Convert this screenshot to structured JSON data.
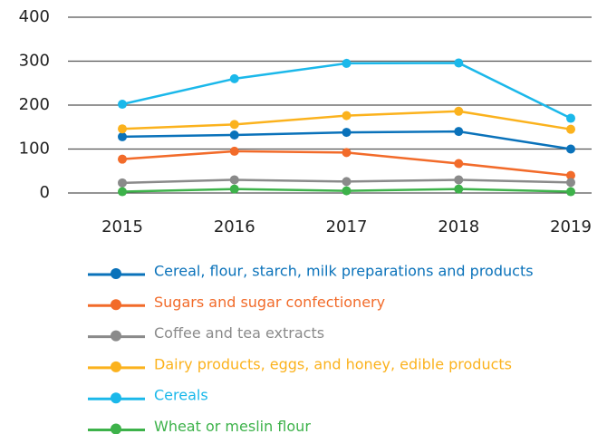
{
  "chart_data": {
    "type": "line",
    "x": [
      "2015",
      "2016",
      "2017",
      "2018",
      "2019"
    ],
    "ylim": [
      0,
      400
    ],
    "yticks": [
      0,
      100,
      200,
      300,
      400
    ],
    "grid": true,
    "series": [
      {
        "name": "Cereal, flour, starch, milk preparations and products",
        "color": "#0a72ba",
        "values": [
          128,
          132,
          138,
          140,
          100
        ]
      },
      {
        "name": "Sugars and sugar confectionery",
        "color": "#f26b2a",
        "values": [
          77,
          95,
          92,
          67,
          40
        ]
      },
      {
        "name": "Coffee and tea extracts",
        "color": "#8a8a8a",
        "values": [
          23,
          30,
          26,
          30,
          24
        ]
      },
      {
        "name": "Dairy products, eggs, and honey, edible products",
        "color": "#fbb21d",
        "values": [
          146,
          156,
          176,
          186,
          145
        ]
      },
      {
        "name": "Cereals",
        "color": "#1bb8ea",
        "values": [
          202,
          260,
          295,
          296,
          170
        ]
      },
      {
        "name": "Wheat or meslin flour",
        "color": "#3db24a",
        "values": [
          3,
          9,
          5,
          9,
          3
        ]
      }
    ]
  }
}
